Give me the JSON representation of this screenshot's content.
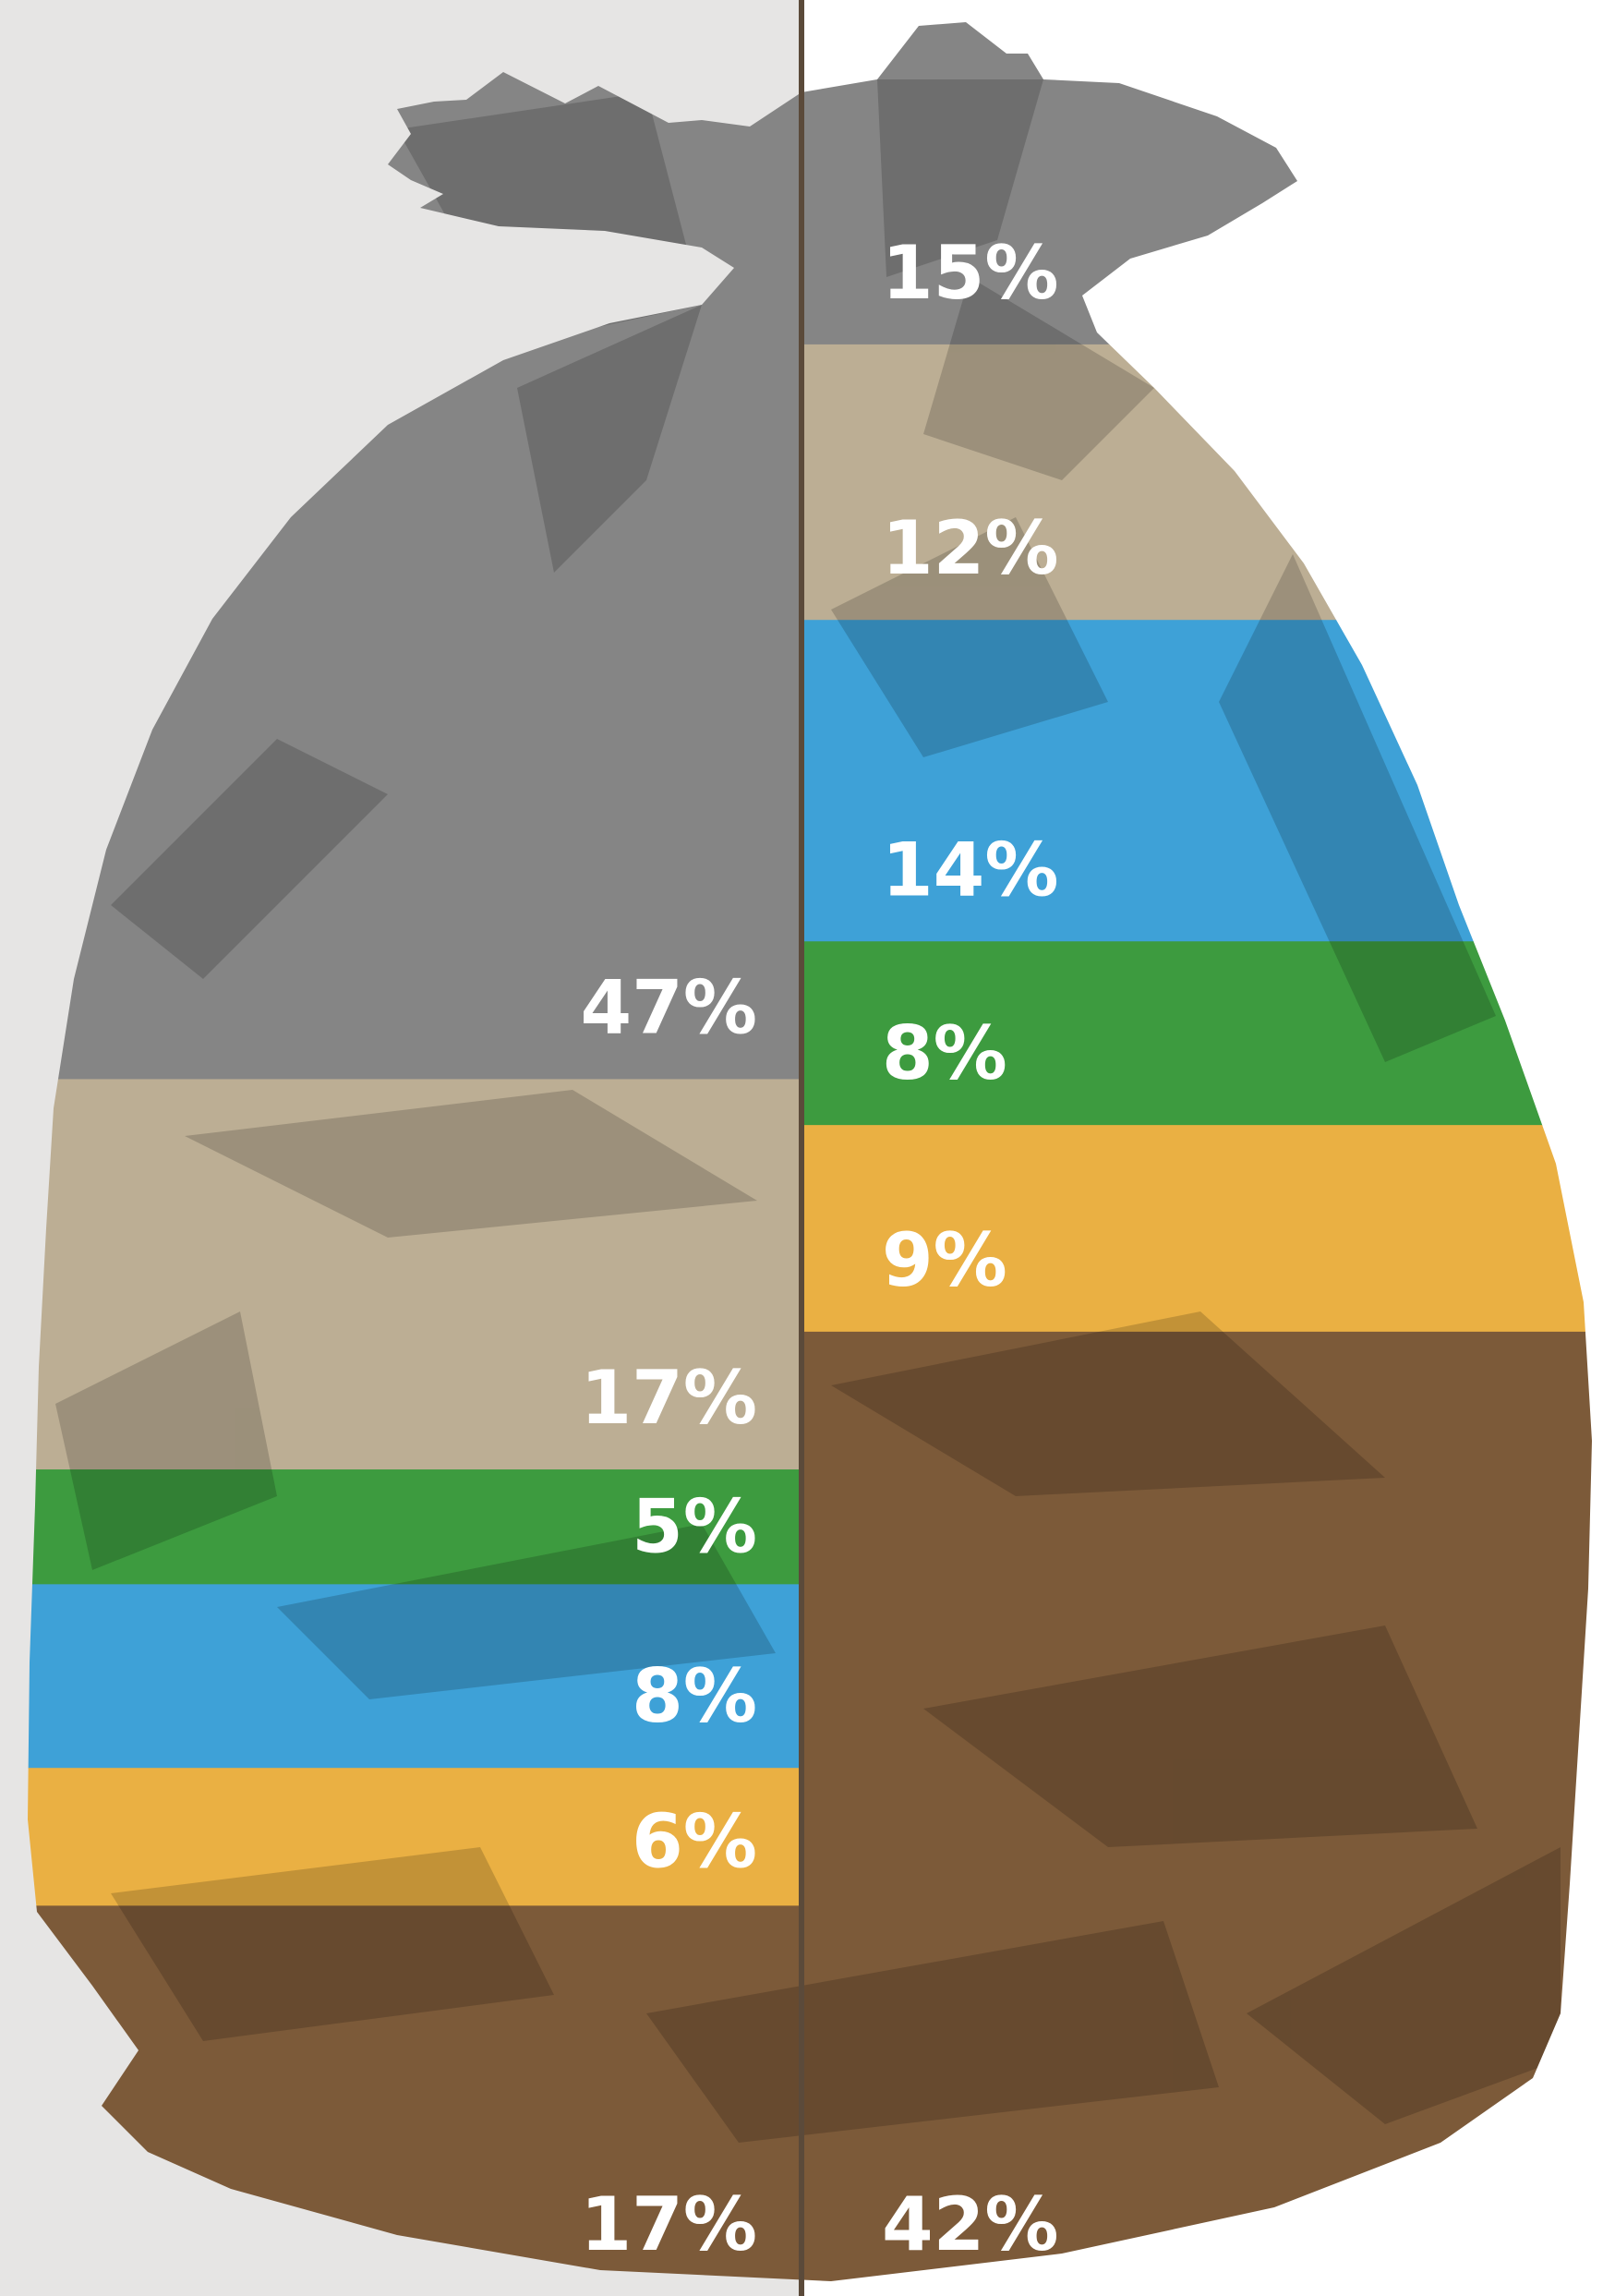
{
  "colors": {
    "left_background": "#e6e5e4",
    "right_background": "#ffffff",
    "divider": "#5b4a3a",
    "label_text": "#ffffff",
    "wrinkle_shadow": "#000000",
    "grey": "#858585",
    "tan": "#bcae94",
    "blue": "#3ea1d7",
    "green": "#3d9b3f",
    "yellow": "#eab043",
    "brown": "#7c5a39"
  },
  "chart_data": {
    "type": "bar",
    "subtype": "stacked-comparison",
    "title": "",
    "xlabel": "",
    "ylabel": "",
    "grid": false,
    "legend": "none",
    "series": [
      {
        "side": "left",
        "segments": [
          {
            "value": 47,
            "label": "47%",
            "color": "grey"
          },
          {
            "value": 17,
            "label": "17%",
            "color": "tan"
          },
          {
            "value": 5,
            "label": "5%",
            "color": "green"
          },
          {
            "value": 8,
            "label": "8%",
            "color": "blue"
          },
          {
            "value": 6,
            "label": "6%",
            "color": "yellow"
          },
          {
            "value": 17,
            "label": "17%",
            "color": "brown"
          }
        ]
      },
      {
        "side": "right",
        "segments": [
          {
            "value": 15,
            "label": "15%",
            "color": "grey"
          },
          {
            "value": 12,
            "label": "12%",
            "color": "tan"
          },
          {
            "value": 14,
            "label": "14%",
            "color": "blue"
          },
          {
            "value": 8,
            "label": "8%",
            "color": "green"
          },
          {
            "value": 9,
            "label": "9%",
            "color": "yellow"
          },
          {
            "value": 42,
            "label": "42%",
            "color": "brown"
          }
        ]
      }
    ]
  }
}
